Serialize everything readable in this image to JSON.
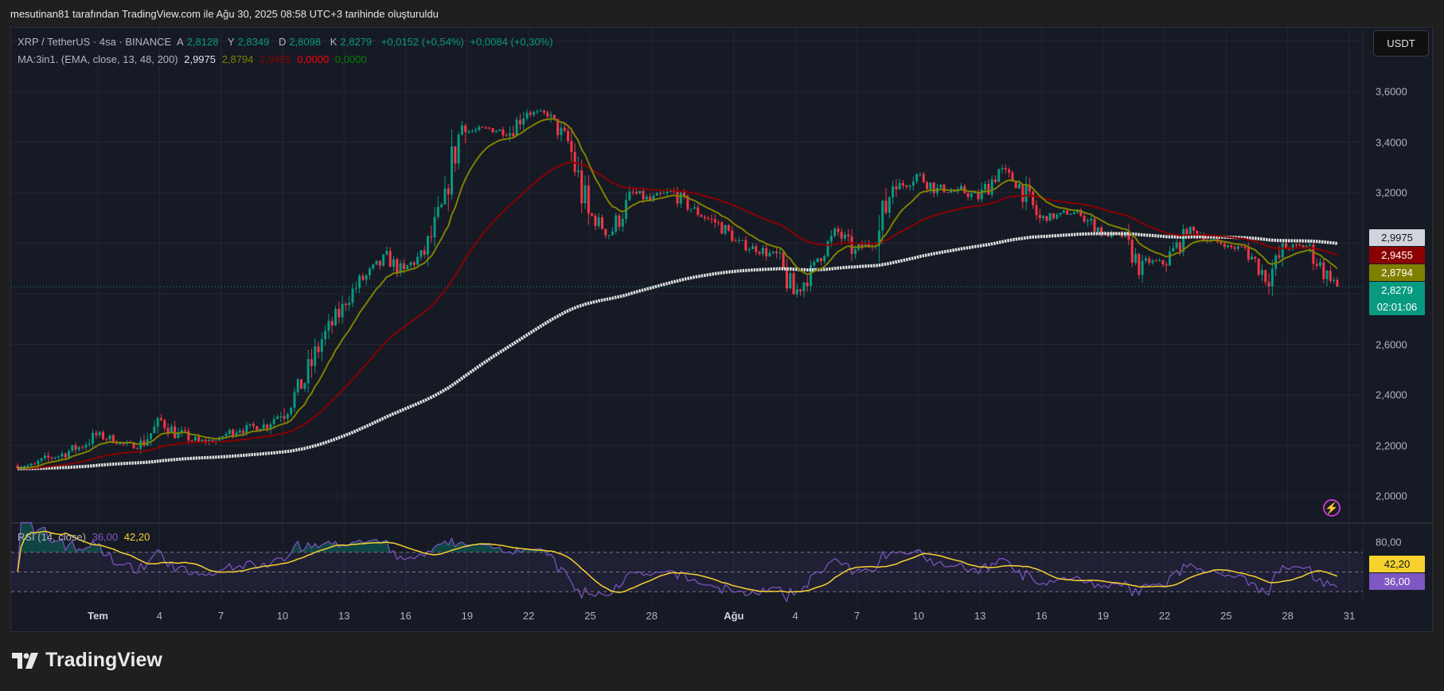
{
  "caption": "mesutinan81 tarafından TradingView.com ile Ağu 30, 2025 08:58 UTC+3 tarihinde oluşturuldu",
  "legend": {
    "symbol": "XRP / TetherUS · 4sa · BINANCE",
    "open_label": "A",
    "open": "2,8128",
    "high_label": "Y",
    "high": "2,8349",
    "low_label": "D",
    "low": "2,8098",
    "close_label": "K",
    "close": "2,8279",
    "change": "+0,0152 (+0,54%)",
    "change2": "+0,0084 (+0,30%)",
    "ma_title": "MA:3in1. (EMA, close, 13, 48, 200)",
    "ma_values": [
      "2,9975",
      "2,8794",
      "2,9455",
      "0,0000",
      "0,0000"
    ],
    "ma_colors": [
      "#e0e3eb",
      "#808000",
      "#8b0000",
      "#ff0000",
      "#008000"
    ]
  },
  "currency_button": "USDT",
  "price_tags": [
    {
      "label": "2,9975",
      "bg": "#d1d4dc",
      "fg": "#131722"
    },
    {
      "label": "2,9455",
      "bg": "#8b0000",
      "fg": "#ffffff"
    },
    {
      "label": "2,8794",
      "bg": "#808000",
      "fg": "#ffffff"
    },
    {
      "label": "2,8279",
      "sub": "02:01:06",
      "bg": "#089981",
      "fg": "#ffffff"
    }
  ],
  "rsi": {
    "title": "RSI (14, close)",
    "value": "36,00",
    "ma_value": "42,20",
    "axis_label": "80,00",
    "line_color": "#7e57c2",
    "ma_color": "#f7d22e",
    "levels": [
      70,
      50,
      30
    ]
  },
  "colors": {
    "up": "#089981",
    "down": "#f23645",
    "ema13": "#808000",
    "ema48": "#8b0000",
    "ema200": "#e0e0e0"
  },
  "logo_text": "TradingView",
  "chart_data": {
    "type": "candlestick",
    "interval": "4h",
    "y_ticks": [
      {
        "label": "3,6000",
        "value": 3.6
      },
      {
        "label": "3,4000",
        "value": 3.4
      },
      {
        "label": "3,2000",
        "value": 3.2
      },
      {
        "label": "2,6000",
        "value": 2.6
      },
      {
        "label": "2,4000",
        "value": 2.4
      },
      {
        "label": "2,2000",
        "value": 2.2
      },
      {
        "label": "2,0000",
        "value": 2.0
      }
    ],
    "x_ticks": [
      {
        "label": "Tem",
        "date": "2025-07-01",
        "bold": true
      },
      {
        "label": "4",
        "date": "2025-07-04"
      },
      {
        "label": "7",
        "date": "2025-07-07"
      },
      {
        "label": "10",
        "date": "2025-07-10"
      },
      {
        "label": "13",
        "date": "2025-07-13"
      },
      {
        "label": "16",
        "date": "2025-07-16"
      },
      {
        "label": "19",
        "date": "2025-07-19"
      },
      {
        "label": "22",
        "date": "2025-07-22"
      },
      {
        "label": "25",
        "date": "2025-07-25"
      },
      {
        "label": "28",
        "date": "2025-07-28"
      },
      {
        "label": "Ağu",
        "date": "2025-08-01",
        "bold": true
      },
      {
        "label": "4",
        "date": "2025-08-04"
      },
      {
        "label": "7",
        "date": "2025-08-07"
      },
      {
        "label": "10",
        "date": "2025-08-10"
      },
      {
        "label": "13",
        "date": "2025-08-13"
      },
      {
        "label": "16",
        "date": "2025-08-16"
      },
      {
        "label": "19",
        "date": "2025-08-19"
      },
      {
        "label": "22",
        "date": "2025-08-22"
      },
      {
        "label": "25",
        "date": "2025-08-25"
      },
      {
        "label": "28",
        "date": "2025-08-28"
      },
      {
        "label": "31",
        "date": "2025-08-31"
      }
    ],
    "last_price": 2.8279,
    "daily_close": [
      [
        "2025-06-27",
        2.12
      ],
      [
        "2025-06-28",
        2.16
      ],
      [
        "2025-06-29",
        2.19
      ],
      [
        "2025-06-30",
        2.24
      ],
      [
        "2025-07-01",
        2.22
      ],
      [
        "2025-07-02",
        2.2
      ],
      [
        "2025-07-03",
        2.28
      ],
      [
        "2025-07-04",
        2.24
      ],
      [
        "2025-07-05",
        2.21
      ],
      [
        "2025-07-06",
        2.22
      ],
      [
        "2025-07-07",
        2.27
      ],
      [
        "2025-07-08",
        2.28
      ],
      [
        "2025-07-09",
        2.33
      ],
      [
        "2025-07-10",
        2.44
      ],
      [
        "2025-07-11",
        2.62
      ],
      [
        "2025-07-12",
        2.74
      ],
      [
        "2025-07-13",
        2.86
      ],
      [
        "2025-07-14",
        2.93
      ],
      [
        "2025-07-15",
        2.88
      ],
      [
        "2025-07-16",
        2.96
      ],
      [
        "2025-07-17",
        3.16
      ],
      [
        "2025-07-18",
        3.52
      ],
      [
        "2025-07-19",
        3.45
      ],
      [
        "2025-07-20",
        3.44
      ],
      [
        "2025-07-21",
        3.53
      ],
      [
        "2025-07-22",
        3.51
      ],
      [
        "2025-07-23",
        3.4
      ],
      [
        "2025-07-24",
        3.1
      ],
      [
        "2025-07-25",
        3.04
      ],
      [
        "2025-07-26",
        3.17
      ],
      [
        "2025-07-27",
        3.17
      ],
      [
        "2025-07-28",
        3.2
      ],
      [
        "2025-07-29",
        3.14
      ],
      [
        "2025-07-30",
        3.09
      ],
      [
        "2025-07-31",
        3.03
      ],
      [
        "2025-08-01",
        2.98
      ],
      [
        "2025-08-02",
        2.95
      ],
      [
        "2025-08-03",
        2.8
      ],
      [
        "2025-08-04",
        2.9
      ],
      [
        "2025-08-05",
        3.03
      ],
      [
        "2025-08-06",
        2.96
      ],
      [
        "2025-08-07",
        3.01
      ],
      [
        "2025-08-08",
        3.3
      ],
      [
        "2025-08-09",
        3.27
      ],
      [
        "2025-08-10",
        3.21
      ],
      [
        "2025-08-11",
        3.2
      ],
      [
        "2025-08-12",
        3.18
      ],
      [
        "2025-08-13",
        3.29
      ],
      [
        "2025-08-14",
        3.23
      ],
      [
        "2025-08-15",
        3.09
      ],
      [
        "2025-08-16",
        3.11
      ],
      [
        "2025-08-17",
        3.12
      ],
      [
        "2025-08-18",
        3.05
      ],
      [
        "2025-08-19",
        3.03
      ],
      [
        "2025-08-20",
        2.89
      ],
      [
        "2025-08-21",
        2.92
      ],
      [
        "2025-08-22",
        3.02
      ],
      [
        "2025-08-23",
        3.03
      ],
      [
        "2025-08-24",
        3.0
      ],
      [
        "2025-08-25",
        2.98
      ],
      [
        "2025-08-26",
        2.87
      ],
      [
        "2025-08-27",
        2.99
      ],
      [
        "2025-08-28",
        2.99
      ],
      [
        "2025-08-29",
        2.87
      ],
      [
        "2025-08-30",
        2.8279
      ]
    ]
  }
}
